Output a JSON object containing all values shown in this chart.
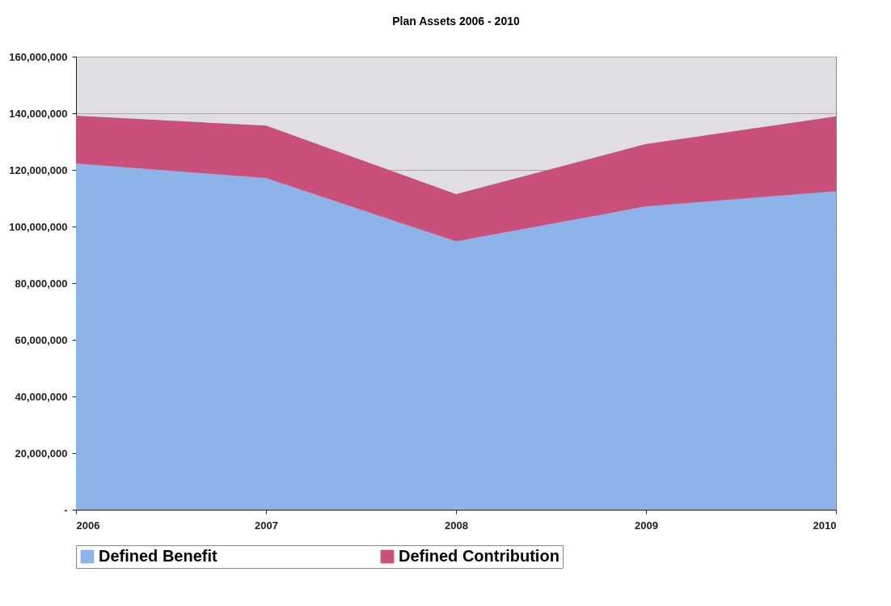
{
  "chart_data": {
    "type": "area",
    "title": "Plan Assets 2006 - 2010",
    "stacked": true,
    "categories": [
      "2006",
      "2007",
      "2008",
      "2009",
      "2010"
    ],
    "series": [
      {
        "name": "Defined Benefit",
        "color": "#8db4e8",
        "values": [
          122100000,
          116900000,
          94600000,
          106900000,
          112300000
        ]
      },
      {
        "name": "Defined Contribution",
        "color": "#c8507a",
        "values": [
          16800000,
          18500000,
          16600000,
          22000000,
          26400000
        ]
      }
    ],
    "ylim": [
      0,
      160000000
    ],
    "yticks": [
      {
        "value": 0,
        "label": "-"
      },
      {
        "value": 20000000,
        "label": "20,000,000"
      },
      {
        "value": 40000000,
        "label": "40,000,000"
      },
      {
        "value": 60000000,
        "label": "60,000,000"
      },
      {
        "value": 80000000,
        "label": "80,000,000"
      },
      {
        "value": 100000000,
        "label": "100,000,000"
      },
      {
        "value": 120000000,
        "label": "120,000,000"
      },
      {
        "value": 140000000,
        "label": "140,000,000"
      },
      {
        "value": 160000000,
        "label": "160,000,000"
      }
    ],
    "grid": "y",
    "legend": "bottom"
  }
}
